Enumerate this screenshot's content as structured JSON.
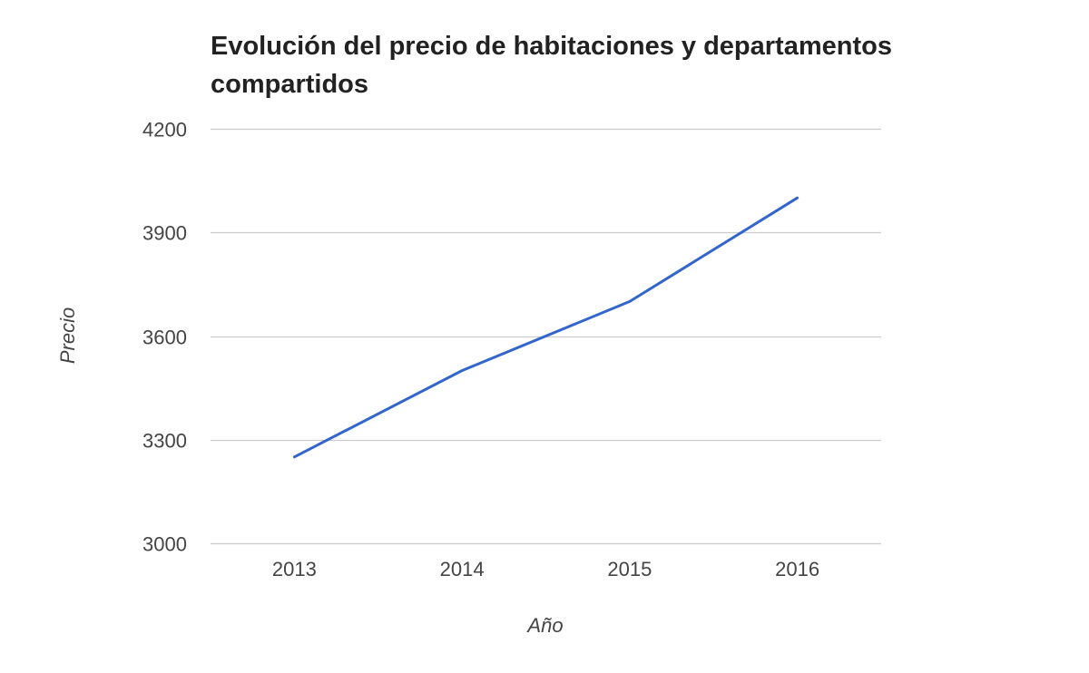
{
  "chart_data": {
    "type": "line",
    "title": "Evolución del precio de habitaciones y departamentos compartidos",
    "xlabel": "Año",
    "ylabel": "Precio",
    "categories": [
      "2013",
      "2014",
      "2015",
      "2016"
    ],
    "series": [
      {
        "values": [
          3250,
          3500,
          3700,
          4000
        ],
        "color": "#3366cc"
      }
    ],
    "ylim": [
      3000,
      4200
    ],
    "yticks": [
      3000,
      3300,
      3600,
      3900,
      4200
    ],
    "ytick_labels": [
      "3000",
      "3300",
      "3600",
      "3900",
      "4200"
    ],
    "grid": true,
    "legend": "none",
    "gridline_color": "#cccccc"
  }
}
